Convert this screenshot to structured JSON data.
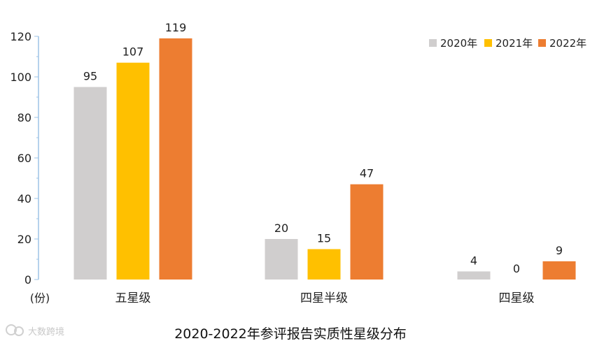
{
  "chart_data": {
    "type": "bar",
    "title": "2020-2022年参评报告实质性星级分布",
    "ylabel": "(份)",
    "xlabel": "",
    "ylim": [
      0,
      120
    ],
    "yticks": [
      0,
      20,
      40,
      60,
      80,
      100,
      120
    ],
    "categories": [
      "五星级",
      "四星半级",
      "四星级"
    ],
    "series": [
      {
        "name": "2020年",
        "color": "#d0cece",
        "values": [
          95,
          20,
          4
        ]
      },
      {
        "name": "2021年",
        "color": "#ffc000",
        "values": [
          107,
          15,
          0
        ]
      },
      {
        "name": "2022年",
        "color": "#ed7d31",
        "values": [
          119,
          47,
          9
        ]
      }
    ],
    "legend_position": "top-right",
    "grid": false
  },
  "watermark": {
    "text": "大数跨境",
    "icon": "logo-icon"
  }
}
